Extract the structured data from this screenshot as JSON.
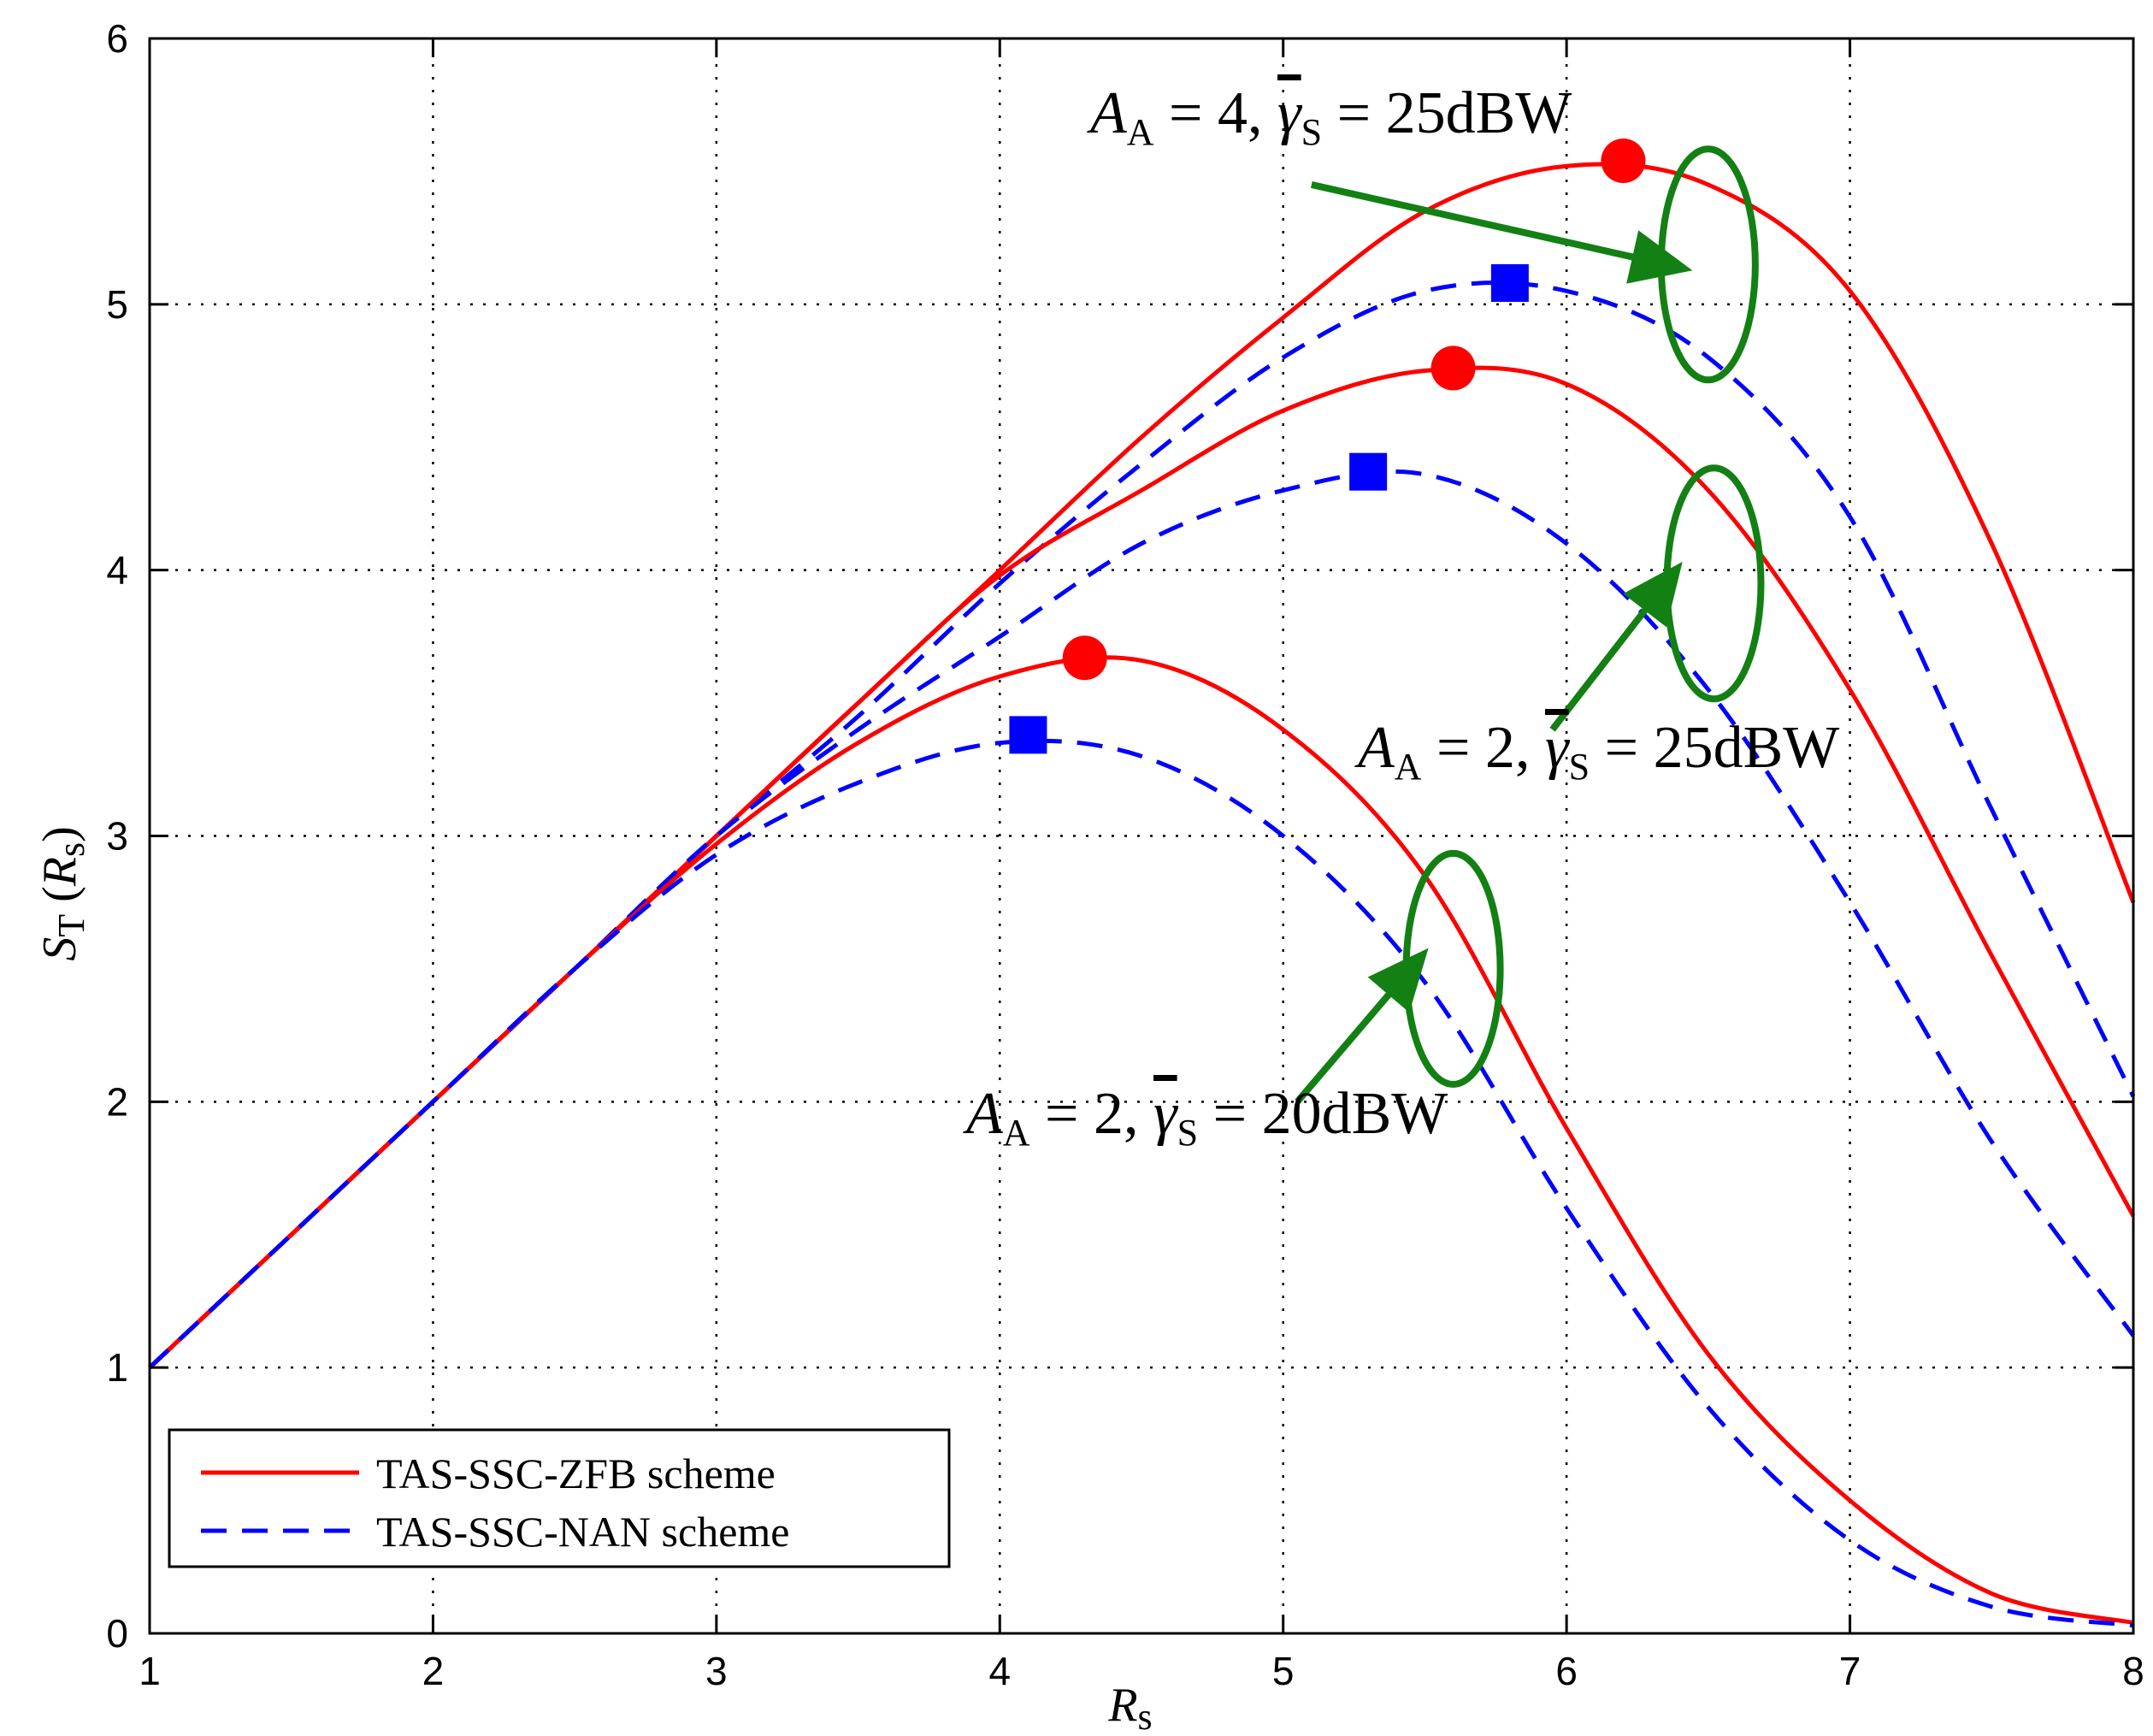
{
  "chart_data": {
    "type": "line",
    "title": "",
    "xlabel": {
      "main": "R",
      "sub": "s"
    },
    "ylabel": {
      "main": "S",
      "sub": "T",
      "arg_main": "R",
      "arg_sub": "s"
    },
    "xlim": [
      1,
      8
    ],
    "ylim": [
      0,
      6
    ],
    "xticks": [
      1,
      2,
      3,
      4,
      5,
      6,
      7,
      8
    ],
    "yticks": [
      0,
      1,
      2,
      3,
      4,
      5,
      6
    ],
    "xtick_labels": [
      "1",
      "2",
      "3",
      "4",
      "5",
      "6",
      "7",
      "8"
    ],
    "ytick_labels": [
      "0",
      "1",
      "2",
      "3",
      "4",
      "5",
      "6"
    ],
    "grid": true,
    "legend": {
      "position": "bottom-left",
      "entries": [
        {
          "label": "TAS-SSC-ZFB scheme",
          "color": "#ff0000",
          "style": "solid"
        },
        {
          "label": "TAS-SSC-NAN scheme",
          "color": "#0000ff",
          "style": "dashed"
        }
      ]
    },
    "x": [
      1,
      1.5,
      2,
      2.5,
      3,
      3.5,
      4,
      4.5,
      5,
      5.5,
      6,
      6.5,
      7,
      7.5,
      8
    ],
    "series": [
      {
        "name": "TAS-SSC-ZFB A_A=4, 25dBW",
        "color": "#ff0000",
        "style": "solid",
        "values": [
          1.0,
          1.5,
          2.0,
          2.5,
          3.0,
          3.5,
          4.0,
          4.5,
          4.95,
          5.35,
          5.52,
          5.45,
          5.05,
          4.1,
          2.75
        ],
        "peak": {
          "x": 6.2,
          "y": 5.54,
          "marker": "circle"
        }
      },
      {
        "name": "TAS-SSC-NAN A_A=4, 25dBW",
        "color": "#0000ff",
        "style": "dashed",
        "values": [
          1.0,
          1.5,
          2.0,
          2.5,
          3.0,
          3.45,
          3.95,
          4.4,
          4.8,
          5.05,
          5.05,
          4.8,
          4.2,
          3.1,
          2.02
        ],
        "peak": {
          "x": 5.8,
          "y": 5.08,
          "marker": "square"
        }
      },
      {
        "name": "TAS-SSC-ZFB A_A=2, 25dBW",
        "color": "#ff0000",
        "style": "solid",
        "values": [
          1.0,
          1.5,
          2.0,
          2.5,
          3.0,
          3.5,
          3.98,
          4.3,
          4.6,
          4.75,
          4.7,
          4.3,
          3.55,
          2.55,
          1.57
        ],
        "peak": {
          "x": 5.6,
          "y": 4.76,
          "marker": "circle"
        }
      },
      {
        "name": "TAS-SSC-NAN A_A=2, 25dBW",
        "color": "#0000ff",
        "style": "dashed",
        "values": [
          1.0,
          1.5,
          2.0,
          2.5,
          3.0,
          3.4,
          3.75,
          4.1,
          4.3,
          4.36,
          4.1,
          3.55,
          2.75,
          1.85,
          1.12
        ],
        "peak": {
          "x": 5.3,
          "y": 4.37,
          "marker": "square"
        }
      },
      {
        "name": "TAS-SSC-ZFB A_A=2, 20dBW",
        "color": "#ff0000",
        "style": "solid",
        "values": [
          1.0,
          1.5,
          2.0,
          2.5,
          2.97,
          3.35,
          3.6,
          3.66,
          3.4,
          2.85,
          1.9,
          1.05,
          0.5,
          0.15,
          0.04
        ],
        "peak": {
          "x": 4.3,
          "y": 3.67,
          "marker": "circle"
        }
      },
      {
        "name": "TAS-SSC-NAN A_A=2, 20dBW",
        "color": "#0000ff",
        "style": "dashed",
        "values": [
          1.0,
          1.5,
          2.0,
          2.5,
          2.93,
          3.2,
          3.35,
          3.3,
          3.0,
          2.45,
          1.6,
          0.85,
          0.35,
          0.1,
          0.03
        ],
        "peak": {
          "x": 4.1,
          "y": 3.38,
          "marker": "square"
        }
      }
    ],
    "annotations": [
      {
        "id": "g1",
        "text_A": "A",
        "text_A_sub": "A",
        "text_mid": " = 4, ",
        "text_g": "γ",
        "text_g_sub": "S",
        "text_tail": " = 25dBW",
        "ellipse_center": [
          6.5,
          5.15
        ],
        "arrow_from": [
          5.1,
          5.45
        ],
        "arrow_to": [
          6.35,
          5.15
        ]
      },
      {
        "id": "g2",
        "text_A": "A",
        "text_A_sub": "A",
        "text_mid": " = 2, ",
        "text_g": "γ",
        "text_g_sub": "S",
        "text_tail": " = 25dBW",
        "ellipse_center": [
          6.52,
          3.95
        ],
        "arrow_from": [
          5.95,
          3.4
        ],
        "arrow_to": [
          6.35,
          3.95
        ]
      },
      {
        "id": "g3",
        "text_A": "A",
        "text_A_sub": "A",
        "text_mid": " = 2, ",
        "text_g": "γ",
        "text_g_sub": "S",
        "text_tail": " = 20dBW",
        "ellipse_center": [
          5.6,
          2.5
        ],
        "arrow_from": [
          5.05,
          2.0
        ],
        "arrow_to": [
          5.45,
          2.5
        ]
      }
    ],
    "annotation_color": "#138013"
  }
}
